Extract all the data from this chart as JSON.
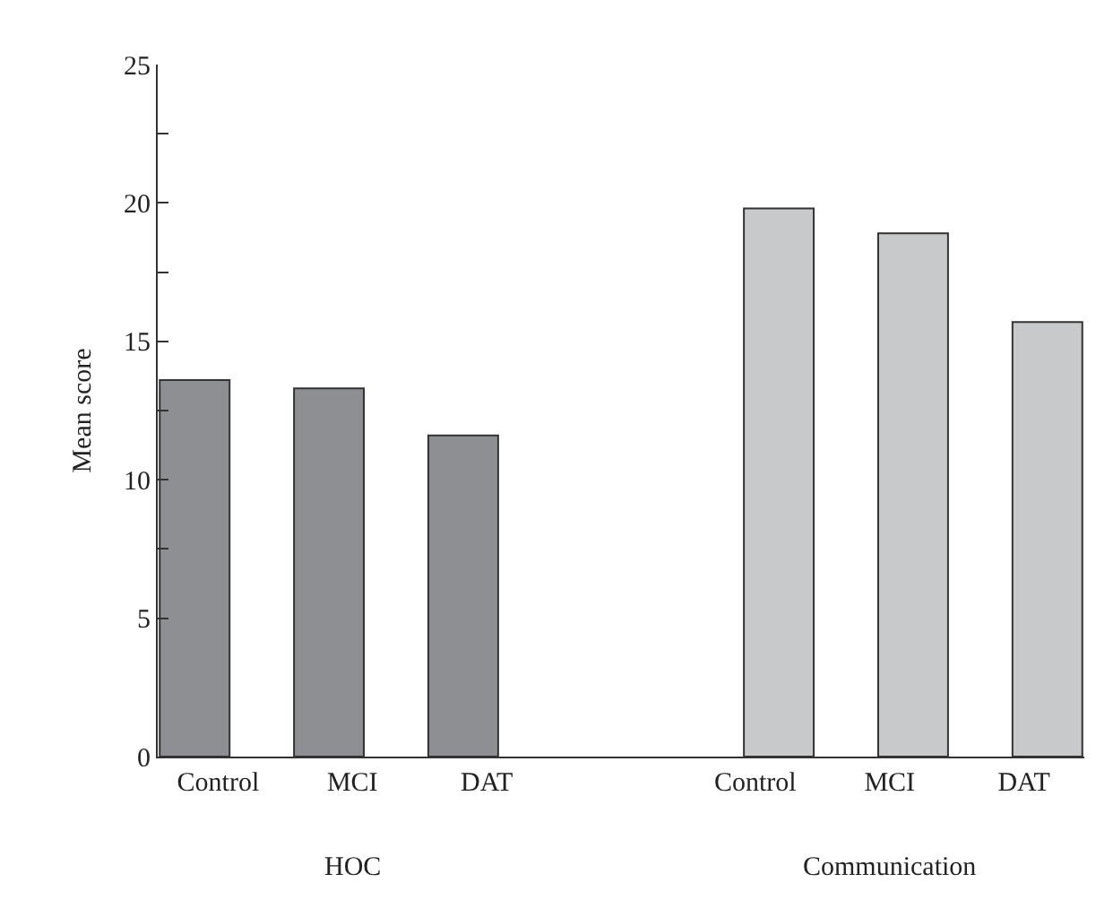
{
  "chart_data": {
    "type": "bar",
    "ylabel": "Mean score",
    "categories": [
      "Control",
      "MCI",
      "DAT",
      null,
      "Control",
      "MCI",
      "DAT"
    ],
    "series": [
      {
        "color": "#8e8f93",
        "values": [
          13.6,
          13.3,
          11.6,
          null,
          null,
          null,
          null
        ]
      },
      {
        "color": "#c8c9cb",
        "values": [
          null,
          null,
          null,
          null,
          19.8,
          18.9,
          15.7
        ]
      }
    ],
    "annotations": [
      "HOC",
      "Communication"
    ],
    "ylim": [
      0,
      25
    ],
    "yticks": [
      0,
      5,
      10,
      15,
      20,
      25,
      {
        "value": 7.5,
        "label": null
      },
      {
        "value": 12.5,
        "label": null
      },
      {
        "value": 17.5,
        "label": null
      },
      {
        "value": 22.5,
        "label": null
      }
    ],
    "legend": false
  }
}
